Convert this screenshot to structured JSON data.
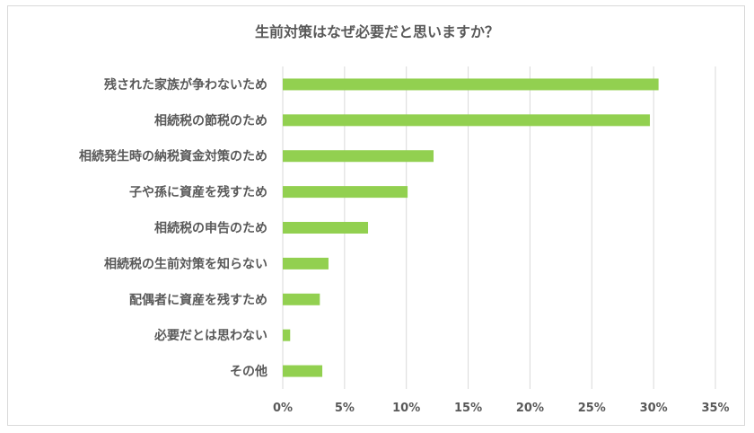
{
  "chart_data": {
    "type": "bar",
    "orientation": "horizontal",
    "title": "生前対策はなぜ必要だと思いますか？",
    "categories": [
      "残された家族が争わないため",
      "相続税の節税のため",
      "相続発生時の納税資金対策のため",
      "子や孫に資産を残すため",
      "相続税の申告のため",
      "相続税の生前対策を知らない",
      "配偶者に資産を残すため",
      "必要だとは思わない",
      "その他"
    ],
    "values": [
      30.4,
      29.7,
      12.2,
      10.1,
      6.9,
      3.7,
      3.0,
      0.6,
      3.2
    ],
    "xlim": [
      0,
      35
    ],
    "ticks": [
      "0%",
      "5%",
      "10%",
      "15%",
      "20%",
      "25%",
      "30%",
      "35%"
    ],
    "tick_values": [
      0,
      5,
      10,
      15,
      20,
      25,
      30,
      35
    ],
    "grid": true,
    "legend": "none",
    "bar_color": "#92d050",
    "grid_color": "#d9d9d9",
    "text_color": "#595959"
  }
}
